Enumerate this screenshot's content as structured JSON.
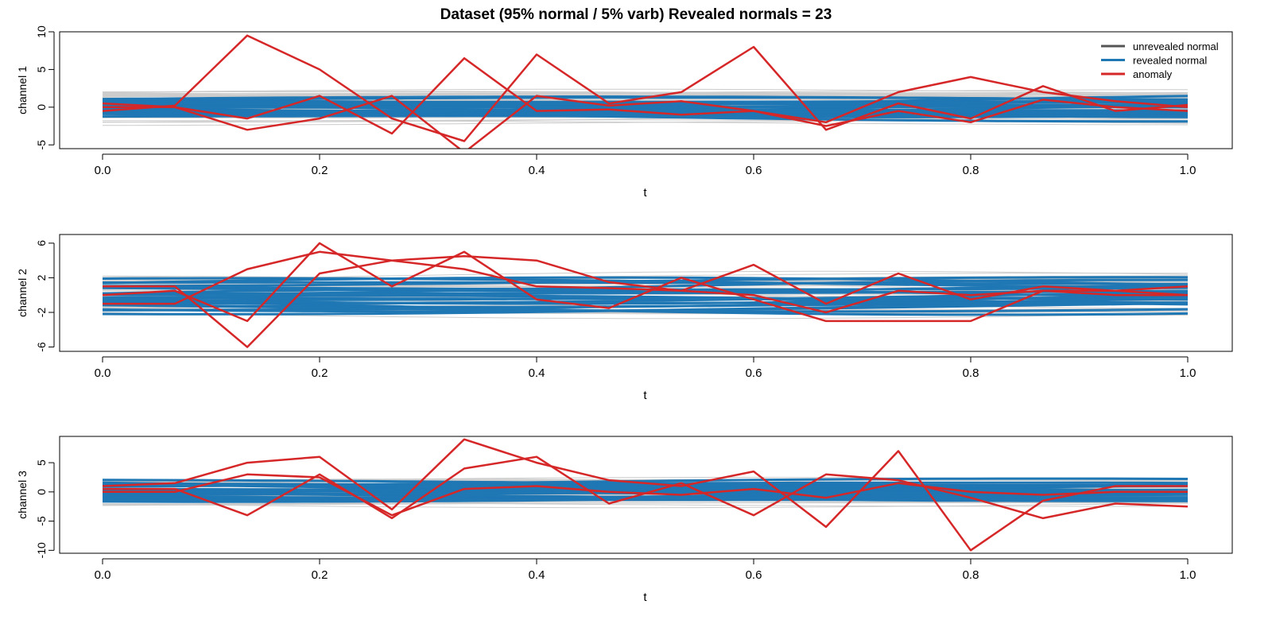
{
  "title": "Dataset (95% normal / 5% varb)   Revealed normals = 23",
  "legend": {
    "placement": "top-right",
    "entries": [
      {
        "label": "unrevealed normal",
        "color": "#555555"
      },
      {
        "label": "revealed normal",
        "color": "#1f77b4"
      },
      {
        "label": "anomaly",
        "color": "#d62728"
      }
    ]
  },
  "colors": {
    "unrevealed": "#cccccc",
    "revealed": "#1f77b4",
    "anomaly": "#d62728"
  },
  "chart_data": [
    {
      "type": "line",
      "ylabel": "channel 1",
      "xlabel": "t",
      "xlim": [
        0,
        1
      ],
      "ylim": [
        -5.5,
        10
      ],
      "xticks": [
        0.0,
        0.2,
        0.4,
        0.6,
        0.8,
        1.0
      ],
      "xtick_labels": [
        "0.0",
        "0.2",
        "0.4",
        "0.6",
        "0.8",
        "1.0"
      ],
      "yticks": [
        -5,
        0,
        5,
        10
      ],
      "ytick_labels": [
        "-5",
        "0",
        "5",
        "10"
      ],
      "x": [
        0,
        0.0667,
        0.1333,
        0.2,
        0.2667,
        0.3333,
        0.4,
        0.4667,
        0.5333,
        0.6,
        0.6667,
        0.7333,
        0.8,
        0.8667,
        0.9333,
        1.0
      ],
      "anomalies": [
        [
          -0.5,
          0.2,
          9.5,
          5.0,
          -1.5,
          -4.5,
          7.0,
          0.5,
          2.0,
          8.0,
          -3.0,
          0.5,
          -1.5,
          2.8,
          -0.5,
          0.3
        ],
        [
          0.5,
          0.0,
          -3.0,
          -1.5,
          1.5,
          -6.0,
          1.5,
          0.2,
          0.8,
          -0.5,
          -2.0,
          2.0,
          4.0,
          2.0,
          0.8,
          0.0
        ],
        [
          0.0,
          0.0,
          -1.5,
          1.5,
          -3.5,
          6.5,
          -0.5,
          -0.3,
          -1.0,
          -0.5,
          -2.5,
          -0.5,
          -2.0,
          1.0,
          0.0,
          -0.5
        ]
      ]
    },
    {
      "type": "line",
      "ylabel": "channel 2",
      "xlabel": "t",
      "xlim": [
        0,
        1
      ],
      "ylim": [
        -6.5,
        7
      ],
      "xticks": [
        0.0,
        0.2,
        0.4,
        0.6,
        0.8,
        1.0
      ],
      "xtick_labels": [
        "0.0",
        "0.2",
        "0.4",
        "0.6",
        "0.8",
        "1.0"
      ],
      "yticks": [
        -6,
        -2,
        2,
        6
      ],
      "ytick_labels": [
        "-6",
        "-2",
        "2",
        "6"
      ],
      "x": [
        0,
        0.0667,
        0.1333,
        0.2,
        0.2667,
        0.3333,
        0.4,
        0.4667,
        0.5333,
        0.6,
        0.6667,
        0.7333,
        0.8,
        0.8667,
        0.9333,
        1.0
      ],
      "anomalies": [
        [
          1.0,
          1.0,
          -6.0,
          2.5,
          4.0,
          4.5,
          4.0,
          1.5,
          0.5,
          3.5,
          -1.0,
          2.5,
          -0.5,
          1.0,
          0.5,
          1.0
        ],
        [
          -1.0,
          -1.0,
          3.0,
          5.0,
          4.0,
          3.0,
          1.0,
          0.8,
          0.5,
          0.0,
          -2.0,
          0.5,
          0.0,
          0.5,
          0.0,
          0.0
        ],
        [
          0.0,
          0.5,
          -3.0,
          6.0,
          1.0,
          5.0,
          -0.5,
          -1.5,
          2.0,
          -0.5,
          -3.0,
          -3.0,
          -3.0,
          0.5,
          0.5,
          0.0
        ]
      ]
    },
    {
      "type": "line",
      "ylabel": "channel 3",
      "xlabel": "t",
      "xlim": [
        0,
        1
      ],
      "ylim": [
        -10.5,
        9.5
      ],
      "xticks": [
        0.0,
        0.2,
        0.4,
        0.6,
        0.8,
        1.0
      ],
      "xtick_labels": [
        "0.0",
        "0.2",
        "0.4",
        "0.6",
        "0.8",
        "1.0"
      ],
      "yticks": [
        -10,
        -5,
        0,
        5
      ],
      "ytick_labels": [
        "-10",
        "-5",
        "0",
        "5"
      ],
      "x": [
        0,
        0.0667,
        0.1333,
        0.2,
        0.2667,
        0.3333,
        0.4,
        0.4667,
        0.5333,
        0.6,
        0.6667,
        0.7333,
        0.8,
        0.8667,
        0.9333,
        1.0
      ],
      "anomalies": [
        [
          1.0,
          1.5,
          5.0,
          6.0,
          -3.0,
          9.0,
          5.0,
          2.0,
          1.0,
          3.5,
          -6.0,
          7.0,
          -10.0,
          -1.5,
          1.0,
          1.0
        ],
        [
          0.5,
          0.5,
          -4.0,
          3.0,
          -4.5,
          4.0,
          6.0,
          -2.0,
          1.5,
          -4.0,
          3.0,
          2.0,
          -1.0,
          -4.5,
          -2.0,
          -2.5
        ],
        [
          0.0,
          0.0,
          3.0,
          2.5,
          -4.0,
          0.5,
          1.0,
          0.0,
          -0.5,
          0.5,
          -1.0,
          1.5,
          0.0,
          -0.5,
          0.0,
          0.0
        ]
      ]
    }
  ]
}
